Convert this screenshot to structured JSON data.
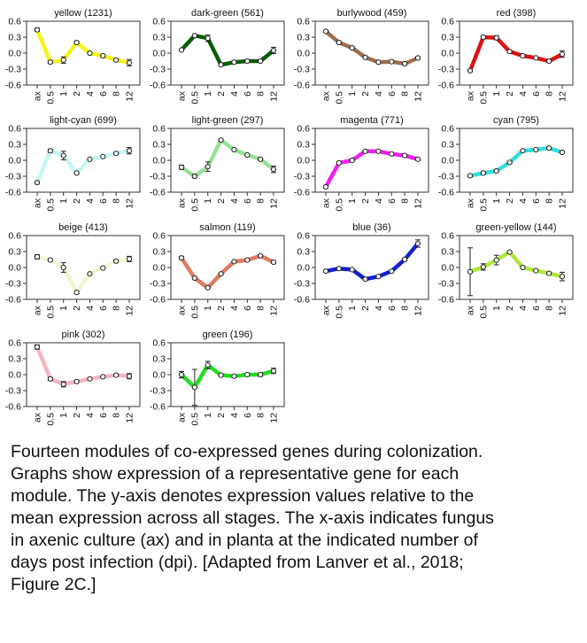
{
  "x_categories": [
    "ax",
    "0.5",
    "1",
    "2",
    "4",
    "6",
    "8",
    "12"
  ],
  "y_ticks": [
    "0.6",
    "0.3",
    "0.0",
    "-0.3",
    "-0.6"
  ],
  "chart_data": [
    {
      "type": "line",
      "title": "yellow (1231)",
      "color": "#f5f51c",
      "categories": [
        "ax",
        "0.5",
        "1",
        "2",
        "4",
        "6",
        "8",
        "12"
      ],
      "values": [
        0.44,
        -0.17,
        -0.13,
        0.2,
        0.0,
        -0.05,
        -0.13,
        -0.18
      ],
      "error": [
        0.03,
        0.02,
        0.06,
        0.02,
        0.01,
        0.02,
        0.02,
        0.06
      ],
      "ylim": [
        -0.6,
        0.6
      ]
    },
    {
      "type": "line",
      "title": "dark-green (561)",
      "color": "#0a5c0a",
      "categories": [
        "ax",
        "0.5",
        "1",
        "2",
        "4",
        "6",
        "8",
        "12"
      ],
      "values": [
        0.06,
        0.33,
        0.28,
        -0.22,
        -0.17,
        -0.15,
        -0.15,
        0.05
      ],
      "error": [
        0.02,
        0.02,
        0.06,
        0.02,
        0.01,
        0.01,
        0.02,
        0.06
      ],
      "ylim": [
        -0.6,
        0.6
      ]
    },
    {
      "type": "line",
      "title": "burlywood (459)",
      "color": "#9c6e4e",
      "categories": [
        "ax",
        "0.5",
        "1",
        "2",
        "4",
        "6",
        "8",
        "12"
      ],
      "values": [
        0.41,
        0.2,
        0.1,
        -0.08,
        -0.17,
        -0.16,
        -0.2,
        -0.09
      ],
      "error": [
        0.02,
        0.02,
        0.02,
        0.02,
        0.01,
        0.01,
        0.02,
        0.02
      ],
      "ylim": [
        -0.6,
        0.6
      ]
    },
    {
      "type": "line",
      "title": "red (398)",
      "color": "#dd1111",
      "categories": [
        "ax",
        "0.5",
        "1",
        "2",
        "4",
        "6",
        "8",
        "12"
      ],
      "values": [
        -0.33,
        0.3,
        0.29,
        0.03,
        -0.05,
        -0.09,
        -0.15,
        -0.02
      ],
      "error": [
        0.02,
        0.02,
        0.04,
        0.02,
        0.01,
        0.01,
        0.02,
        0.06
      ],
      "ylim": [
        -0.6,
        0.6
      ]
    },
    {
      "type": "line",
      "title": "light-cyan (699)",
      "color": "#c6f5f5",
      "categories": [
        "ax",
        "0.5",
        "1",
        "2",
        "4",
        "6",
        "8",
        "12"
      ],
      "values": [
        -0.42,
        0.18,
        0.09,
        -0.24,
        0.02,
        0.07,
        0.13,
        0.18
      ],
      "error": [
        0.02,
        0.03,
        0.08,
        0.02,
        0.01,
        0.01,
        0.02,
        0.06
      ],
      "ylim": [
        -0.6,
        0.6
      ]
    },
    {
      "type": "line",
      "title": "light-green (297)",
      "color": "#98e098",
      "categories": [
        "ax",
        "0.5",
        "1",
        "2",
        "4",
        "6",
        "8",
        "12"
      ],
      "values": [
        -0.13,
        -0.3,
        -0.12,
        0.38,
        0.2,
        0.1,
        0.02,
        -0.17
      ],
      "error": [
        0.04,
        0.03,
        0.09,
        0.02,
        0.01,
        0.01,
        0.02,
        0.06
      ],
      "ylim": [
        -0.6,
        0.6
      ]
    },
    {
      "type": "line",
      "title": "magenta (771)",
      "color": "#ee22ee",
      "categories": [
        "ax",
        "0.5",
        "1",
        "2",
        "4",
        "6",
        "8",
        "12"
      ],
      "values": [
        -0.5,
        -0.05,
        0.0,
        0.17,
        0.17,
        0.12,
        0.09,
        0.02
      ],
      "error": [
        0.02,
        0.02,
        0.02,
        0.02,
        0.01,
        0.01,
        0.01,
        0.02
      ],
      "ylim": [
        -0.6,
        0.6
      ]
    },
    {
      "type": "line",
      "title": "cyan (795)",
      "color": "#33dddd",
      "categories": [
        "ax",
        "0.5",
        "1",
        "2",
        "4",
        "6",
        "8",
        "12"
      ],
      "values": [
        -0.29,
        -0.24,
        -0.2,
        -0.04,
        0.18,
        0.2,
        0.23,
        0.15
      ],
      "error": [
        0.02,
        0.02,
        0.02,
        0.02,
        0.01,
        0.01,
        0.02,
        0.02
      ],
      "ylim": [
        -0.6,
        0.6
      ]
    },
    {
      "type": "line",
      "title": "beige (413)",
      "color": "#f3f3cf",
      "categories": [
        "ax",
        "0.5",
        "1",
        "2",
        "4",
        "6",
        "8",
        "12"
      ],
      "values": [
        0.2,
        0.14,
        0.0,
        -0.47,
        -0.12,
        -0.01,
        0.12,
        0.16
      ],
      "error": [
        0.04,
        0.02,
        0.09,
        0.02,
        0.01,
        0.01,
        0.02,
        0.05
      ],
      "ylim": [
        -0.6,
        0.6
      ]
    },
    {
      "type": "line",
      "title": "salmon (119)",
      "color": "#e07a62",
      "categories": [
        "ax",
        "0.5",
        "1",
        "2",
        "4",
        "6",
        "8",
        "12"
      ],
      "values": [
        0.18,
        -0.2,
        -0.38,
        -0.12,
        0.11,
        0.14,
        0.22,
        0.1
      ],
      "error": [
        0.03,
        0.02,
        0.02,
        0.02,
        0.01,
        0.01,
        0.02,
        0.02
      ],
      "ylim": [
        -0.6,
        0.6
      ]
    },
    {
      "type": "line",
      "title": "blue (36)",
      "color": "#1122cc",
      "categories": [
        "ax",
        "0.5",
        "1",
        "2",
        "4",
        "6",
        "8",
        "12"
      ],
      "values": [
        -0.07,
        -0.02,
        -0.04,
        -0.22,
        -0.17,
        -0.07,
        0.15,
        0.45
      ],
      "error": [
        0.02,
        0.02,
        0.02,
        0.02,
        0.01,
        0.01,
        0.02,
        0.07
      ],
      "ylim": [
        -0.6,
        0.6
      ]
    },
    {
      "type": "line",
      "title": "green-yellow (144)",
      "color": "#aee83c",
      "categories": [
        "ax",
        "0.5",
        "1",
        "2",
        "4",
        "6",
        "8",
        "12"
      ],
      "values": [
        -0.08,
        0.01,
        0.14,
        0.29,
        0.0,
        -0.06,
        -0.11,
        -0.17
      ],
      "error": [
        0.45,
        0.06,
        0.09,
        0.02,
        0.01,
        0.01,
        0.02,
        0.08
      ],
      "ylim": [
        -0.6,
        0.6
      ]
    },
    {
      "type": "line",
      "title": "pink (302)",
      "color": "#f4b6c2",
      "categories": [
        "ax",
        "0.5",
        "1",
        "2",
        "4",
        "6",
        "8",
        "12"
      ],
      "values": [
        0.52,
        -0.08,
        -0.18,
        -0.13,
        -0.08,
        -0.04,
        -0.01,
        -0.03
      ],
      "error": [
        0.04,
        0.03,
        0.05,
        0.02,
        0.01,
        0.01,
        0.02,
        0.05
      ],
      "ylim": [
        -0.6,
        0.6
      ]
    },
    {
      "type": "line",
      "title": "green (196)",
      "color": "#22dd22",
      "categories": [
        "ax",
        "0.5",
        "1",
        "2",
        "4",
        "6",
        "8",
        "12"
      ],
      "values": [
        0.0,
        -0.24,
        0.18,
        -0.01,
        -0.03,
        0.0,
        0.0,
        0.07
      ],
      "error": [
        0.06,
        0.34,
        0.07,
        0.02,
        0.01,
        0.01,
        0.03,
        0.05
      ],
      "ylim": [
        -0.6,
        0.6
      ]
    }
  ],
  "caption": {
    "lines": [
      "Fourteen modules of co-expressed genes during colonization.",
      "Graphs show expression of a representative gene for each",
      "module. The y-axis denotes expression values relative to the",
      "mean expression across all stages. The x-axis indicates fungus",
      "in axenic culture (ax) and in planta at the indicated number of",
      "days post infection (dpi). [Adapted from Lanver et al., 2018;",
      "Figure 2C.]"
    ]
  }
}
